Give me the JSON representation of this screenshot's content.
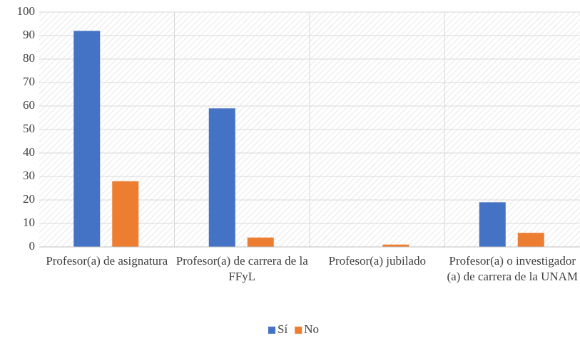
{
  "chart_data": {
    "type": "bar",
    "categories": [
      "Profesor(a) de asignatura",
      "Profesor(a) de carrera de la FFyL",
      "Profesor(a) jubilado",
      "Profesor(a) o investigador (a) de carrera de la UNAM"
    ],
    "series": [
      {
        "name": "Sí",
        "color": "#4472c4",
        "values": [
          92,
          59,
          0,
          19
        ]
      },
      {
        "name": "No",
        "color": "#ed7d31",
        "values": [
          28,
          4,
          1,
          6
        ]
      }
    ],
    "ylim": [
      0,
      100
    ],
    "yticks": [
      0,
      10,
      20,
      30,
      40,
      50,
      60,
      70,
      80,
      90,
      100
    ],
    "grid": true,
    "legend": "bottom"
  }
}
